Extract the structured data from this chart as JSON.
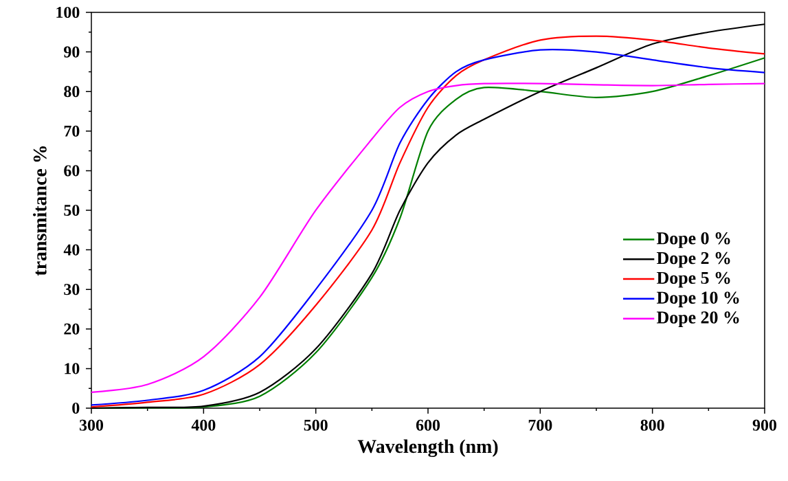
{
  "chart_data": {
    "type": "line",
    "xlabel": "Wavelength (nm)",
    "ylabel": "transmitance %",
    "xlim": [
      300,
      900
    ],
    "ylim": [
      0,
      100
    ],
    "xticks": [
      300,
      400,
      500,
      600,
      700,
      800,
      900
    ],
    "yticks": [
      0,
      10,
      20,
      30,
      40,
      50,
      60,
      70,
      80,
      90,
      100
    ],
    "legend": "right",
    "grid": false,
    "marker": "none",
    "line_style": "solid",
    "x": [
      300,
      350,
      400,
      450,
      500,
      550,
      575,
      600,
      625,
      650,
      700,
      750,
      800,
      850,
      900
    ],
    "series": [
      {
        "name": "Dope  0 %",
        "color": "#008000",
        "values": [
          0,
          0.1,
          0.3,
          3,
          14,
          33,
          48,
          70,
          78,
          81,
          80,
          78.5,
          80,
          84,
          88.5
        ]
      },
      {
        "name": "Dope  2  %",
        "color": "#000000",
        "values": [
          0,
          0.2,
          0.5,
          4,
          15,
          34,
          50,
          62,
          69,
          73,
          80,
          86,
          92,
          95,
          97
        ]
      },
      {
        "name": "Dope  5  %",
        "color": "#ff0000",
        "values": [
          0.3,
          1.5,
          3.5,
          11,
          26,
          45,
          62,
          76,
          84,
          88,
          93,
          94,
          93,
          91,
          89.5
        ]
      },
      {
        "name": "Dope 10 %",
        "color": "#0000ff",
        "values": [
          0.8,
          2,
          4.5,
          13,
          30,
          50,
          67,
          78,
          85,
          88,
          90.5,
          90,
          88,
          86,
          84.8
        ]
      },
      {
        "name": "Dope 20 %",
        "color": "#ff00ff",
        "values": [
          4,
          6,
          13,
          28,
          50,
          68,
          76,
          80,
          81.5,
          82,
          82,
          81.7,
          81.5,
          81.8,
          82
        ]
      }
    ]
  }
}
